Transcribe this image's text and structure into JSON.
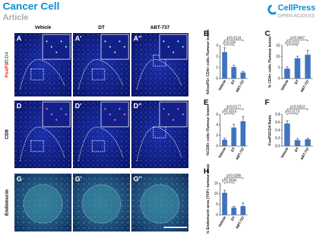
{
  "header": {
    "journal": "Cancer Cell",
    "article_type": "Article",
    "publisher": "CellPress",
    "access": "OPEN ACCESS"
  },
  "image_panels": {
    "column_headers": [
      "Vehicle",
      "DT",
      "ABT-737"
    ],
    "row_labels": [
      [
        "FoxP3",
        "/",
        "CD4"
      ],
      [
        "CD8"
      ],
      [
        "Endomucin"
      ]
    ],
    "panel_labels": [
      [
        "A",
        "A'",
        "A''"
      ],
      [
        "D",
        "D'",
        "D''"
      ],
      [
        "G",
        "G'",
        "G''"
      ]
    ]
  },
  "chart_data": [
    {
      "type": "bar",
      "panel": "B",
      "ylabel": "%FoxP3+ CD4+ cells /Tumour lesion",
      "categories": [
        "Vehicle",
        "DT",
        "ABT-737"
      ],
      "values": [
        2.4,
        1.05,
        0.55
      ],
      "errors": [
        0.4,
        0.15,
        0.1
      ],
      "color": "#3f73c0",
      "ylim": [
        0,
        3
      ],
      "yticks": [
        0,
        1,
        2,
        3
      ],
      "annotations": [
        "p=0.0114",
        "p=0.039"
      ]
    },
    {
      "type": "bar",
      "panel": "C",
      "ylabel": "% CD4+ cells /Tumour lesion",
      "categories": [
        "Vehicle",
        "DT",
        "ABT-737"
      ],
      "values": [
        4.5,
        9.2,
        10.8
      ],
      "errors": [
        0.8,
        1.0,
        2.0
      ],
      "color": "#3f73c0",
      "ylim": [
        0,
        15
      ],
      "yticks": [
        0,
        5,
        10,
        15
      ],
      "annotations": [
        "p=0.0447",
        "p=0.0211"
      ]
    },
    {
      "type": "bar",
      "panel": "E",
      "ylabel": "%CD8+ cells /Tumour lesion",
      "categories": [
        "Vehicle",
        "DT",
        "ABT-737"
      ],
      "values": [
        1.2,
        3.5,
        4.7
      ],
      "errors": [
        0.3,
        0.6,
        0.9
      ],
      "color": "#3f73c0",
      "ylim": [
        0,
        6
      ],
      "yticks": [
        0,
        2,
        4,
        6
      ],
      "annotations": [
        "p=0.0177",
        "p=0.0314"
      ]
    },
    {
      "type": "bar",
      "panel": "F",
      "ylabel": "FoxP3/CD4 Ratio",
      "categories": [
        "Vehicle",
        "DT",
        "ABT-737"
      ],
      "values": [
        0.57,
        0.15,
        0.17
      ],
      "errors": [
        0.07,
        0.04,
        0.03
      ],
      "color": "#3f73c0",
      "ylim": [
        0,
        0.8
      ],
      "yticks": [
        {
          "value": 0,
          "label": "0.0"
        },
        {
          "value": 0.2,
          "label": "0.2"
        },
        {
          "value": 0.4,
          "label": "0.4"
        },
        {
          "value": 0.6,
          "label": "0.6"
        },
        {
          "value": 0.8,
          "label": "0.8"
        }
      ],
      "annotations": [
        "p=0.0323",
        "p=0.0173"
      ]
    },
    {
      "type": "bar",
      "panel": "H",
      "ylabel": "% Endomucin area (YFP+ tumour area)",
      "categories": [
        "Vehicle",
        "DT",
        "ABT-737"
      ],
      "values": [
        10.5,
        3.5,
        4.2
      ],
      "errors": [
        1.2,
        0.6,
        1.5
      ],
      "color": "#3f73c0",
      "ylim": [
        0,
        15
      ],
      "yticks": [
        0,
        5,
        10,
        15
      ],
      "annotations": [
        "p=0.0285",
        "p=0.0036"
      ]
    }
  ]
}
